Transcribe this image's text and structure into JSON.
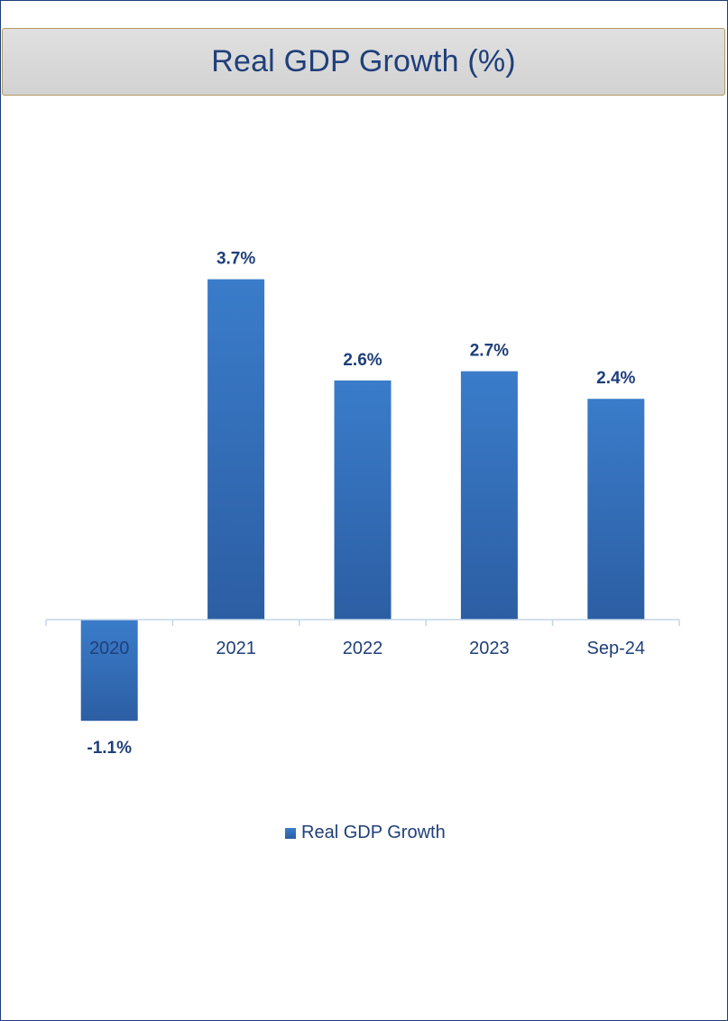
{
  "title": "Real GDP Growth (%)",
  "colors": {
    "bar_top": "#3a7cca",
    "bar_bottom": "#2c5ea3",
    "text": "#1f3f7a",
    "axis": "#c4d5ea",
    "title_bg": "#d9d9d9",
    "title_border": "#b39a63"
  },
  "chart_data": {
    "type": "bar",
    "categories": [
      "2020",
      "2021",
      "2022",
      "2023",
      "Sep-24"
    ],
    "series": [
      {
        "name": "Real GDP Growth",
        "values": [
          -1.1,
          3.7,
          2.6,
          2.7,
          2.4
        ]
      }
    ],
    "data_labels": [
      "-1.1%",
      "3.7%",
      "2.6%",
      "2.7%",
      "2.4%"
    ],
    "legend": {
      "position": "bottom",
      "label": "Real GDP Growth"
    },
    "grid": false
  }
}
